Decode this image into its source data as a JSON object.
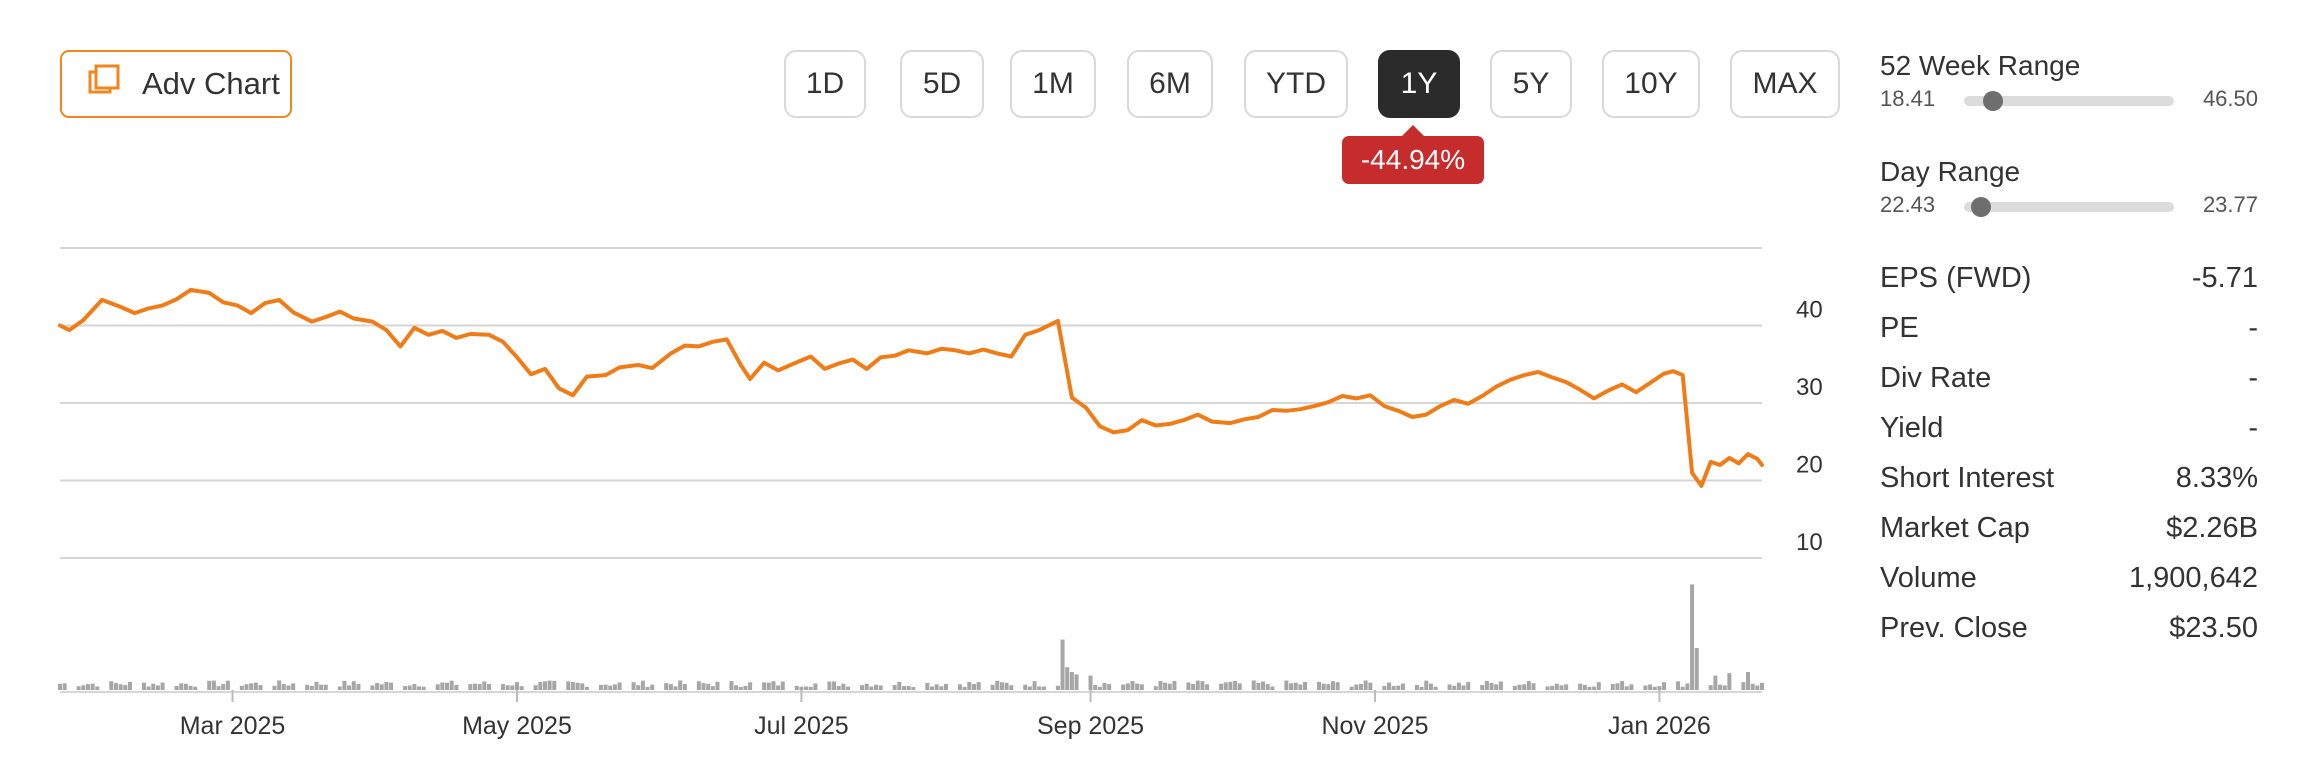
{
  "adv_chart": {
    "label": "Adv Chart",
    "icon": "stacked-windows-icon"
  },
  "ranges": [
    "1D",
    "5D",
    "1M",
    "6M",
    "YTD",
    "1Y",
    "5Y",
    "10Y",
    "MAX"
  ],
  "active_range": "1Y",
  "change_badge": "-44.94%",
  "colors": {
    "accent": "#f0861f",
    "line": "#f07c18",
    "negative": "#c62c2c",
    "volume": "#a6a6a6",
    "active_bg": "#2b2b2b"
  },
  "sidebar": {
    "week52": {
      "title": "52 Week Range",
      "low": "18.41",
      "high": "46.50",
      "position": 0.14
    },
    "day": {
      "title": "Day Range",
      "low": "22.43",
      "high": "23.77",
      "position": 0.08
    },
    "stats": [
      {
        "label": "EPS (FWD)",
        "value": "-5.71"
      },
      {
        "label": "PE",
        "value": "-"
      },
      {
        "label": "Div Rate",
        "value": "-"
      },
      {
        "label": "Yield",
        "value": "-"
      },
      {
        "label": "Short Interest",
        "value": "8.33%"
      },
      {
        "label": "Market Cap",
        "value": "$2.26B"
      },
      {
        "label": "Volume",
        "value": "1,900,642"
      },
      {
        "label": "Prev. Close",
        "value": "$23.50"
      }
    ]
  },
  "chart_data": {
    "type": "line",
    "x_range": [
      "2025-01-23",
      "2026-01-23"
    ],
    "ylim": [
      10,
      50
    ],
    "yticks": [
      10,
      20,
      30,
      40
    ],
    "x_ticks": [
      {
        "label": "Mar 2025",
        "date": "2025-03-01"
      },
      {
        "label": "May 2025",
        "date": "2025-05-01"
      },
      {
        "label": "Jul 2025",
        "date": "2025-07-01"
      },
      {
        "label": "Sep 2025",
        "date": "2025-09-01"
      },
      {
        "label": "Nov 2025",
        "date": "2025-11-01"
      },
      {
        "label": "Jan 2026",
        "date": "2026-01-01"
      }
    ],
    "grid": true,
    "series": [
      {
        "values": [
          [
            "2025-01-23",
            40.0
          ],
          [
            "2025-01-25",
            39.4
          ],
          [
            "2025-01-28",
            40.7
          ],
          [
            "2025-02-01",
            43.3
          ],
          [
            "2025-02-05",
            42.4
          ],
          [
            "2025-02-08",
            41.6
          ],
          [
            "2025-02-11",
            42.2
          ],
          [
            "2025-02-14",
            42.6
          ],
          [
            "2025-02-17",
            43.4
          ],
          [
            "2025-02-20",
            44.6
          ],
          [
            "2025-02-24",
            44.2
          ],
          [
            "2025-02-27",
            43.0
          ],
          [
            "2025-03-02",
            42.6
          ],
          [
            "2025-03-05",
            41.6
          ],
          [
            "2025-03-08",
            42.9
          ],
          [
            "2025-03-11",
            43.3
          ],
          [
            "2025-03-14",
            41.7
          ],
          [
            "2025-03-18",
            40.5
          ],
          [
            "2025-03-21",
            41.1
          ],
          [
            "2025-03-24",
            41.8
          ],
          [
            "2025-03-27",
            40.9
          ],
          [
            "2025-03-31",
            40.5
          ],
          [
            "2025-04-03",
            39.4
          ],
          [
            "2025-04-06",
            37.3
          ],
          [
            "2025-04-09",
            39.7
          ],
          [
            "2025-04-12",
            38.8
          ],
          [
            "2025-04-15",
            39.3
          ],
          [
            "2025-04-18",
            38.4
          ],
          [
            "2025-04-21",
            38.9
          ],
          [
            "2025-04-25",
            38.8
          ],
          [
            "2025-04-28",
            37.9
          ],
          [
            "2025-05-01",
            35.9
          ],
          [
            "2025-05-04",
            33.7
          ],
          [
            "2025-05-07",
            34.4
          ],
          [
            "2025-05-10",
            31.9
          ],
          [
            "2025-05-13",
            31.0
          ],
          [
            "2025-05-16",
            33.4
          ],
          [
            "2025-05-20",
            33.6
          ],
          [
            "2025-05-23",
            34.6
          ],
          [
            "2025-05-27",
            34.9
          ],
          [
            "2025-05-30",
            34.5
          ],
          [
            "2025-06-03",
            36.4
          ],
          [
            "2025-06-06",
            37.4
          ],
          [
            "2025-06-09",
            37.3
          ],
          [
            "2025-06-12",
            37.9
          ],
          [
            "2025-06-15",
            38.2
          ],
          [
            "2025-06-18",
            34.9
          ],
          [
            "2025-06-20",
            33.1
          ],
          [
            "2025-06-23",
            35.2
          ],
          [
            "2025-06-26",
            34.2
          ],
          [
            "2025-06-29",
            35.0
          ],
          [
            "2025-07-03",
            36.0
          ],
          [
            "2025-07-06",
            34.4
          ],
          [
            "2025-07-09",
            35.1
          ],
          [
            "2025-07-12",
            35.6
          ],
          [
            "2025-07-15",
            34.4
          ],
          [
            "2025-07-18",
            35.9
          ],
          [
            "2025-07-21",
            36.1
          ],
          [
            "2025-07-24",
            36.8
          ],
          [
            "2025-07-28",
            36.4
          ],
          [
            "2025-07-31",
            37.0
          ],
          [
            "2025-08-03",
            36.8
          ],
          [
            "2025-08-06",
            36.4
          ],
          [
            "2025-08-09",
            36.9
          ],
          [
            "2025-08-12",
            36.4
          ],
          [
            "2025-08-15",
            36.0
          ],
          [
            "2025-08-18",
            38.8
          ],
          [
            "2025-08-21",
            39.4
          ],
          [
            "2025-08-25",
            40.6
          ],
          [
            "2025-08-28",
            30.7
          ],
          [
            "2025-08-31",
            29.4
          ],
          [
            "2025-09-03",
            27.0
          ],
          [
            "2025-09-06",
            26.2
          ],
          [
            "2025-09-09",
            26.5
          ],
          [
            "2025-09-12",
            27.8
          ],
          [
            "2025-09-15",
            27.1
          ],
          [
            "2025-09-18",
            27.3
          ],
          [
            "2025-09-21",
            27.8
          ],
          [
            "2025-09-24",
            28.5
          ],
          [
            "2025-09-27",
            27.6
          ],
          [
            "2025-10-01",
            27.4
          ],
          [
            "2025-10-04",
            27.9
          ],
          [
            "2025-10-07",
            28.2
          ],
          [
            "2025-10-10",
            29.1
          ],
          [
            "2025-10-13",
            29.0
          ],
          [
            "2025-10-16",
            29.2
          ],
          [
            "2025-10-19",
            29.6
          ],
          [
            "2025-10-22",
            30.1
          ],
          [
            "2025-10-25",
            30.9
          ],
          [
            "2025-10-28",
            30.6
          ],
          [
            "2025-10-31",
            31.0
          ],
          [
            "2025-11-03",
            29.6
          ],
          [
            "2025-11-06",
            29.0
          ],
          [
            "2025-11-09",
            28.2
          ],
          [
            "2025-11-12",
            28.5
          ],
          [
            "2025-11-15",
            29.6
          ],
          [
            "2025-11-18",
            30.4
          ],
          [
            "2025-11-21",
            29.9
          ],
          [
            "2025-11-24",
            30.9
          ],
          [
            "2025-11-27",
            32.1
          ],
          [
            "2025-11-30",
            33.0
          ],
          [
            "2025-12-03",
            33.6
          ],
          [
            "2025-12-06",
            34.0
          ],
          [
            "2025-12-09",
            33.3
          ],
          [
            "2025-12-12",
            32.7
          ],
          [
            "2025-12-15",
            31.7
          ],
          [
            "2025-12-18",
            30.6
          ],
          [
            "2025-12-21",
            31.6
          ],
          [
            "2025-12-24",
            32.4
          ],
          [
            "2025-12-27",
            31.4
          ],
          [
            "2025-12-30",
            32.6
          ],
          [
            "2026-01-02",
            33.8
          ],
          [
            "2026-01-04",
            34.1
          ],
          [
            "2026-01-06",
            33.6
          ],
          [
            "2026-01-08",
            21.0
          ],
          [
            "2026-01-10",
            19.3
          ],
          [
            "2026-01-12",
            22.4
          ],
          [
            "2026-01-14",
            22.0
          ],
          [
            "2026-01-16",
            22.9
          ],
          [
            "2026-01-18",
            22.2
          ],
          [
            "2026-01-20",
            23.4
          ],
          [
            "2026-01-22",
            22.8
          ],
          [
            "2026-01-23",
            22.0
          ]
        ]
      }
    ],
    "volume": {
      "baseline": 0.05,
      "spikes": [
        [
          "2025-08-26",
          0.42
        ],
        [
          "2025-08-27",
          0.19
        ],
        [
          "2025-08-28",
          0.15
        ],
        [
          "2025-08-29",
          0.13
        ],
        [
          "2025-09-01",
          0.12
        ],
        [
          "2026-01-08",
          0.88
        ],
        [
          "2026-01-09",
          0.35
        ],
        [
          "2026-01-10",
          0.13
        ],
        [
          "2026-01-13",
          0.12
        ],
        [
          "2026-01-16",
          0.14
        ],
        [
          "2026-01-20",
          0.15
        ]
      ]
    }
  }
}
